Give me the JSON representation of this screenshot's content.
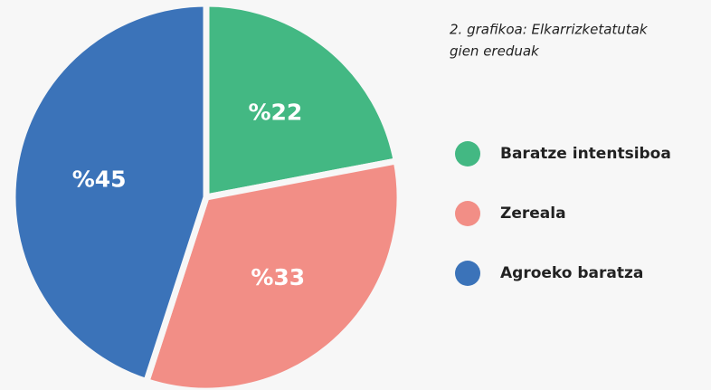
{
  "chart_data": {
    "type": "pie",
    "title": [
      "2. grafikoa: Elkarrizketatutak",
      "gien ereduak"
    ],
    "categories": [
      "Baratze intentsiboa",
      "Zereala",
      "Agroeko baratza"
    ],
    "values": [
      22,
      33,
      45
    ],
    "value_labels": [
      "%22",
      "%33",
      "%45"
    ],
    "colors": [
      "#43b883",
      "#f28e86",
      "#3b73b9"
    ],
    "legend": "right"
  }
}
